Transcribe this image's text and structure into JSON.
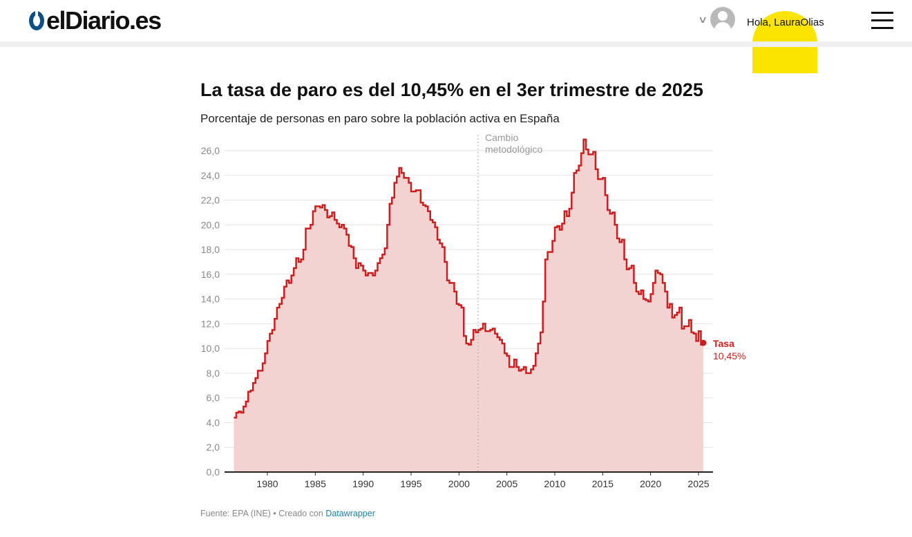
{
  "header": {
    "logo_text": "elDiario.es",
    "greeting": "Hola, LauraOlias"
  },
  "chart_data": {
    "type": "line",
    "title": "La tasa de paro es del 10,45% en el 3er trimestre de 2025",
    "subtitle": "Porcentaje de personas en paro sobre la población activa en España",
    "xlabel": "",
    "ylabel": "",
    "start_year": 1976.5,
    "step_years": 0.25,
    "values": [
      4.4,
      4.8,
      4.9,
      4.8,
      5.3,
      5.7,
      6.5,
      6.6,
      7.2,
      7.6,
      8.2,
      8.2,
      8.8,
      9.6,
      10.6,
      11.2,
      11.5,
      12.4,
      13.3,
      13.6,
      14.1,
      15.0,
      15.5,
      15.3,
      15.9,
      16.5,
      17.3,
      17.0,
      17.2,
      18.0,
      19.7,
      19.7,
      20.0,
      21.1,
      21.5,
      21.5,
      21.4,
      21.6,
      21.2,
      20.6,
      20.7,
      21.0,
      20.4,
      20.1,
      19.8,
      20.0,
      19.7,
      19.2,
      18.3,
      18.2,
      17.3,
      16.5,
      16.9,
      16.7,
      16.3,
      15.9,
      16.1,
      16.1,
      15.9,
      16.3,
      16.9,
      17.3,
      17.6,
      18.1,
      20.0,
      21.7,
      22.2,
      23.4,
      23.9,
      24.6,
      24.2,
      23.8,
      23.8,
      23.4,
      22.7,
      22.7,
      22.8,
      22.8,
      21.8,
      21.6,
      21.5,
      21.1,
      20.4,
      20.2,
      19.8,
      18.8,
      18.5,
      18.2,
      17.0,
      15.5,
      15.3,
      15.3,
      14.6,
      13.6,
      13.5,
      13.3,
      11.0,
      10.4,
      10.3,
      10.7,
      11.5,
      11.3,
      11.5,
      11.6,
      12.0,
      11.4,
      11.4,
      11.5,
      11.6,
      11.2,
      10.9,
      10.7,
      10.4,
      9.6,
      9.4,
      8.5,
      8.5,
      9.1,
      8.5,
      8.2,
      8.3,
      8.5,
      8.0,
      8.0,
      8.3,
      8.6,
      9.6,
      10.4,
      11.3,
      13.8,
      17.2,
      17.8,
      17.8,
      18.7,
      19.8,
      19.9,
      19.6,
      20.1,
      21.1,
      20.7,
      21.3,
      22.6,
      24.2,
      24.4,
      24.8,
      25.8,
      26.9,
      26.1,
      25.7,
      25.7,
      25.9,
      24.5,
      23.7,
      23.7,
      23.8,
      22.4,
      21.2,
      20.9,
      21.0,
      20.0,
      18.9,
      18.6,
      18.8,
      17.2,
      16.4,
      16.5,
      16.7,
      15.3,
      14.6,
      14.4,
      14.7,
      14.0,
      13.9,
      13.8,
      14.4,
      15.3,
      16.3,
      16.1,
      16.0,
      15.3,
      14.6,
      13.3,
      13.6,
      12.5,
      12.7,
      12.9,
      13.3,
      11.6,
      11.8,
      11.8,
      12.3,
      11.3,
      11.2,
      10.6,
      11.4,
      10.3,
      10.45
    ],
    "xlim": [
      1976,
      2026.5
    ],
    "ylim": [
      0,
      26
    ],
    "x_ticks": [
      "1980",
      "1985",
      "1990",
      "1995",
      "2000",
      "2005",
      "2010",
      "2015",
      "2020",
      "2025"
    ],
    "y_ticks": [
      "0,0",
      "2,0",
      "4,0",
      "6,0",
      "8,0",
      "10,0",
      "12,0",
      "14,0",
      "16,0",
      "18,0",
      "20,0",
      "22,0",
      "24,0",
      "26,0"
    ],
    "grid": true,
    "annotation": {
      "year": 2002,
      "line1": "Cambio",
      "line2": "metodológico"
    },
    "end_label": {
      "name": "Tasa",
      "value": "10,45%"
    },
    "colors": {
      "line": "#cc1e1e",
      "area": "#f3d2d2",
      "grid": "#e2e2e2",
      "tick": "#888888"
    }
  },
  "footer": {
    "source": "Fuente: EPA (INE) • Creado con ",
    "link": "Datawrapper"
  }
}
